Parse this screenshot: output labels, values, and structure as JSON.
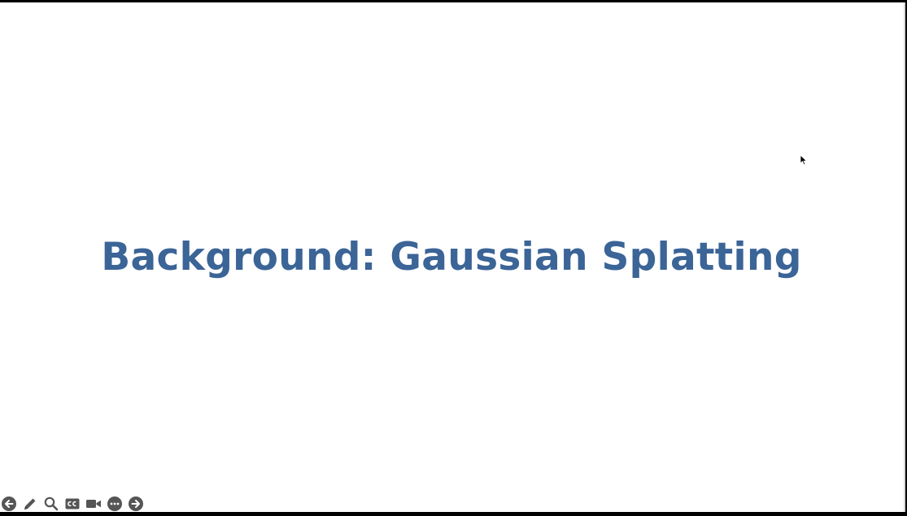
{
  "slide": {
    "title": "Background: Gaussian Splatting",
    "title_color": "#3b6497",
    "background_color": "#ffffff"
  },
  "toolbar": {
    "icon_color": "#555555",
    "items": [
      {
        "name": "previous-slide-button",
        "icon": "arrow-left-circle-icon"
      },
      {
        "name": "pen-tool-button",
        "icon": "pencil-icon"
      },
      {
        "name": "zoom-button",
        "icon": "magnifier-icon"
      },
      {
        "name": "captions-button",
        "icon": "cc-icon"
      },
      {
        "name": "camera-button",
        "icon": "video-camera-icon"
      },
      {
        "name": "more-options-button",
        "icon": "ellipsis-circle-icon"
      },
      {
        "name": "next-slide-button",
        "icon": "arrow-right-circle-icon"
      }
    ]
  }
}
